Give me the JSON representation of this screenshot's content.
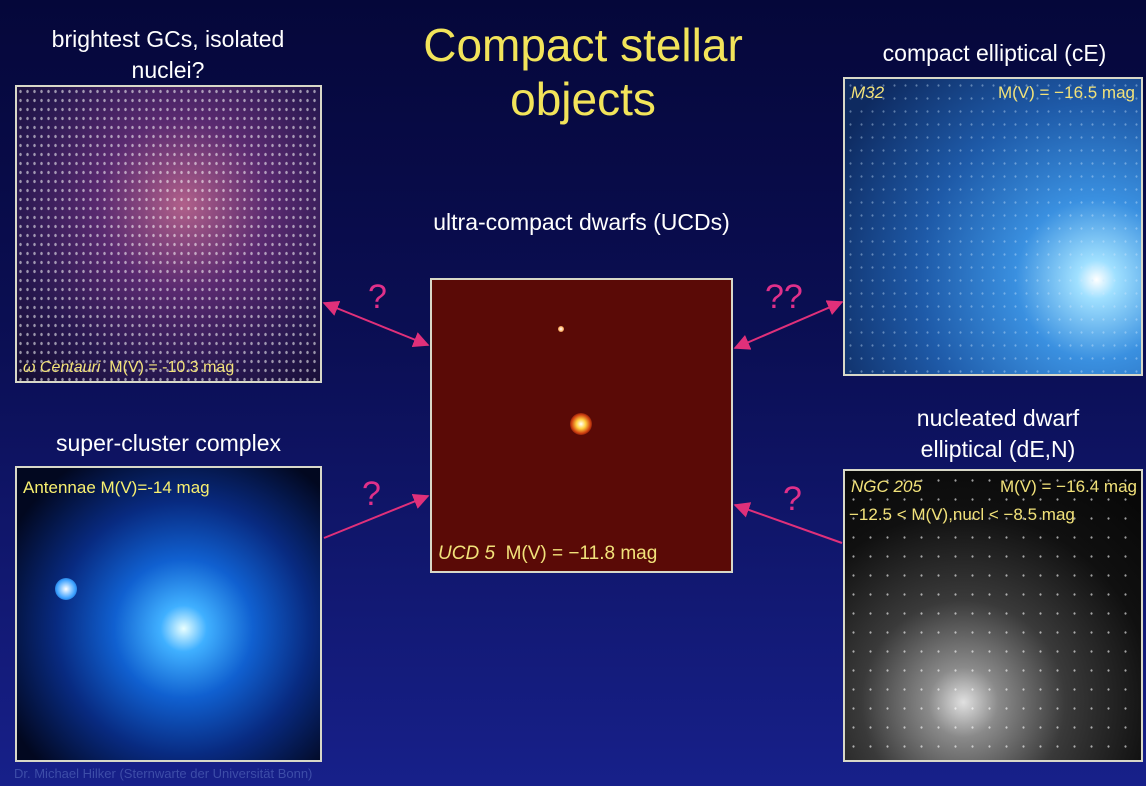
{
  "title": "Compact stellar objects",
  "panels": [
    {
      "heading": "brightest GCs, isolated nuclei?",
      "object": "ω Centauri",
      "magnitude": "M(V) = -10.3 mag"
    },
    {
      "heading": "super-cluster complex",
      "object": "Antennae M(V)=-14 mag"
    },
    {
      "heading": "ultra-compact dwarfs (UCDs)",
      "object": "UCD 5",
      "magnitude": "M(V) = −11.8 mag"
    },
    {
      "heading": "compact elliptical (cE)",
      "object": "M32",
      "magnitude": "M(V) = −16.5 mag"
    },
    {
      "heading": "nucleated dwarf elliptical (dE,N)",
      "object": "NGC 205",
      "magnitude": "M(V) = −16.4 mag",
      "nucleus": "−12.5 < M(V),nucl < −8.5 mag"
    }
  ],
  "arrow_labels": [
    "?",
    "?",
    "??",
    "?"
  ],
  "footer": "Dr. Michael Hilker (Sternwarte der Universität Bonn)"
}
